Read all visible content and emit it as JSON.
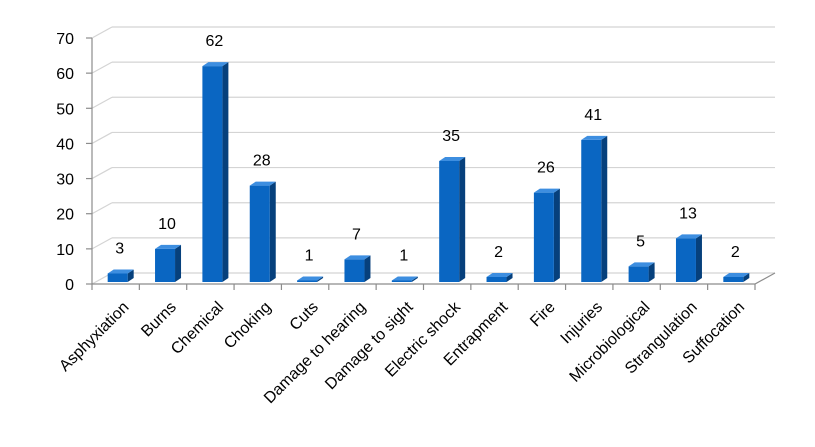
{
  "chart_data": {
    "type": "bar",
    "title": "",
    "xlabel": "",
    "ylabel": "",
    "ylim": [
      0,
      70
    ],
    "yticks": [
      0,
      10,
      20,
      30,
      40,
      50,
      60,
      70
    ],
    "grid": true,
    "legend": "none",
    "style": "3d-column",
    "bar_color": "#0a66c2",
    "categories": [
      "Asphyxiation",
      "Burns",
      "Chemical",
      "Choking",
      "Cuts",
      "Damage to hearing",
      "Damage to sight",
      "Electric shock",
      "Entrapment",
      "Fire",
      "Injuries",
      "Microbiological",
      "Strangulation",
      "Suffocation"
    ],
    "values": [
      3,
      10,
      62,
      28,
      1,
      7,
      1,
      35,
      2,
      26,
      41,
      5,
      13,
      2
    ]
  }
}
